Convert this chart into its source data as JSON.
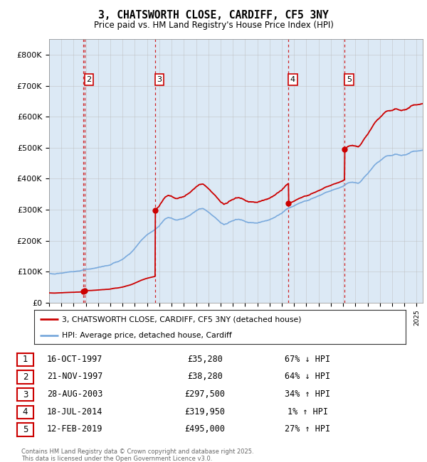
{
  "title": "3, CHATSWORTH CLOSE, CARDIFF, CF5 3NY",
  "subtitle": "Price paid vs. HM Land Registry's House Price Index (HPI)",
  "plot_bg_color": "#dce9f5",
  "ylim": [
    0,
    850000
  ],
  "yticks": [
    0,
    100000,
    200000,
    300000,
    400000,
    500000,
    600000,
    700000,
    800000
  ],
  "ytick_labels": [
    "£0",
    "£100K",
    "£200K",
    "£300K",
    "£400K",
    "£500K",
    "£600K",
    "£700K",
    "£800K"
  ],
  "xmin": 1995.0,
  "xmax": 2025.5,
  "transactions": [
    {
      "num": 1,
      "date": "16-OCT-1997",
      "year": 1997.79,
      "price": 35280,
      "pct": "67% ↓ HPI"
    },
    {
      "num": 2,
      "date": "21-NOV-1997",
      "year": 1997.89,
      "price": 38280,
      "pct": "64% ↓ HPI"
    },
    {
      "num": 3,
      "date": "28-AUG-2003",
      "year": 2003.66,
      "price": 297500,
      "pct": "34% ↑ HPI"
    },
    {
      "num": 4,
      "date": "18-JUL-2014",
      "year": 2014.54,
      "price": 319950,
      "pct": "1% ↑ HPI"
    },
    {
      "num": 5,
      "date": "12-FEB-2019",
      "year": 2019.12,
      "price": 495000,
      "pct": "27% ↑ HPI"
    }
  ],
  "legend_line1": "3, CHATSWORTH CLOSE, CARDIFF, CF5 3NY (detached house)",
  "legend_line2": "HPI: Average price, detached house, Cardiff",
  "footer1": "Contains HM Land Registry data © Crown copyright and database right 2025.",
  "footer2": "This data is licensed under the Open Government Licence v3.0.",
  "red_color": "#cc0000",
  "blue_color": "#7aaadd",
  "grid_color": "#bbbbbb",
  "hpi_points": [
    [
      1995.0,
      93000
    ],
    [
      1995.5,
      94000
    ],
    [
      1996.0,
      96000
    ],
    [
      1996.5,
      98000
    ],
    [
      1997.0,
      100000
    ],
    [
      1997.5,
      103000
    ],
    [
      1998.0,
      107000
    ],
    [
      1998.5,
      110000
    ],
    [
      1999.0,
      113000
    ],
    [
      1999.5,
      117000
    ],
    [
      2000.0,
      122000
    ],
    [
      2000.5,
      130000
    ],
    [
      2001.0,
      140000
    ],
    [
      2001.5,
      155000
    ],
    [
      2002.0,
      175000
    ],
    [
      2002.5,
      200000
    ],
    [
      2003.0,
      218000
    ],
    [
      2003.5,
      232000
    ],
    [
      2004.0,
      248000
    ],
    [
      2004.25,
      260000
    ],
    [
      2004.5,
      270000
    ],
    [
      2004.75,
      275000
    ],
    [
      2005.0,
      272000
    ],
    [
      2005.25,
      268000
    ],
    [
      2005.5,
      266000
    ],
    [
      2005.75,
      268000
    ],
    [
      2006.0,
      272000
    ],
    [
      2006.25,
      278000
    ],
    [
      2006.5,
      283000
    ],
    [
      2006.75,
      290000
    ],
    [
      2007.0,
      296000
    ],
    [
      2007.25,
      302000
    ],
    [
      2007.5,
      304000
    ],
    [
      2007.75,
      300000
    ],
    [
      2008.0,
      293000
    ],
    [
      2008.25,
      285000
    ],
    [
      2008.5,
      278000
    ],
    [
      2008.75,
      268000
    ],
    [
      2009.0,
      258000
    ],
    [
      2009.25,
      252000
    ],
    [
      2009.5,
      255000
    ],
    [
      2009.75,
      260000
    ],
    [
      2010.0,
      264000
    ],
    [
      2010.25,
      268000
    ],
    [
      2010.5,
      268000
    ],
    [
      2010.75,
      265000
    ],
    [
      2011.0,
      262000
    ],
    [
      2011.25,
      260000
    ],
    [
      2011.5,
      258000
    ],
    [
      2011.75,
      257000
    ],
    [
      2012.0,
      258000
    ],
    [
      2012.25,
      260000
    ],
    [
      2012.5,
      262000
    ],
    [
      2012.75,
      265000
    ],
    [
      2013.0,
      268000
    ],
    [
      2013.25,
      272000
    ],
    [
      2013.5,
      278000
    ],
    [
      2013.75,
      283000
    ],
    [
      2014.0,
      290000
    ],
    [
      2014.25,
      297000
    ],
    [
      2014.5,
      303000
    ],
    [
      2014.75,
      308000
    ],
    [
      2015.0,
      312000
    ],
    [
      2015.25,
      318000
    ],
    [
      2015.5,
      322000
    ],
    [
      2015.75,
      325000
    ],
    [
      2016.0,
      328000
    ],
    [
      2016.25,
      332000
    ],
    [
      2016.5,
      336000
    ],
    [
      2016.75,
      340000
    ],
    [
      2017.0,
      344000
    ],
    [
      2017.25,
      348000
    ],
    [
      2017.5,
      352000
    ],
    [
      2017.75,
      356000
    ],
    [
      2018.0,
      360000
    ],
    [
      2018.25,
      364000
    ],
    [
      2018.5,
      368000
    ],
    [
      2018.75,
      372000
    ],
    [
      2019.0,
      376000
    ],
    [
      2019.25,
      382000
    ],
    [
      2019.5,
      386000
    ],
    [
      2019.75,
      390000
    ],
    [
      2020.0,
      388000
    ],
    [
      2020.25,
      385000
    ],
    [
      2020.5,
      392000
    ],
    [
      2020.75,
      405000
    ],
    [
      2021.0,
      415000
    ],
    [
      2021.25,
      428000
    ],
    [
      2021.5,
      440000
    ],
    [
      2021.75,
      450000
    ],
    [
      2022.0,
      458000
    ],
    [
      2022.25,
      466000
    ],
    [
      2022.5,
      472000
    ],
    [
      2022.75,
      474000
    ],
    [
      2023.0,
      475000
    ],
    [
      2023.25,
      478000
    ],
    [
      2023.5,
      476000
    ],
    [
      2023.75,
      474000
    ],
    [
      2024.0,
      476000
    ],
    [
      2024.25,
      480000
    ],
    [
      2024.5,
      484000
    ],
    [
      2024.75,
      488000
    ],
    [
      2025.0,
      490000
    ],
    [
      2025.5,
      492000
    ]
  ]
}
